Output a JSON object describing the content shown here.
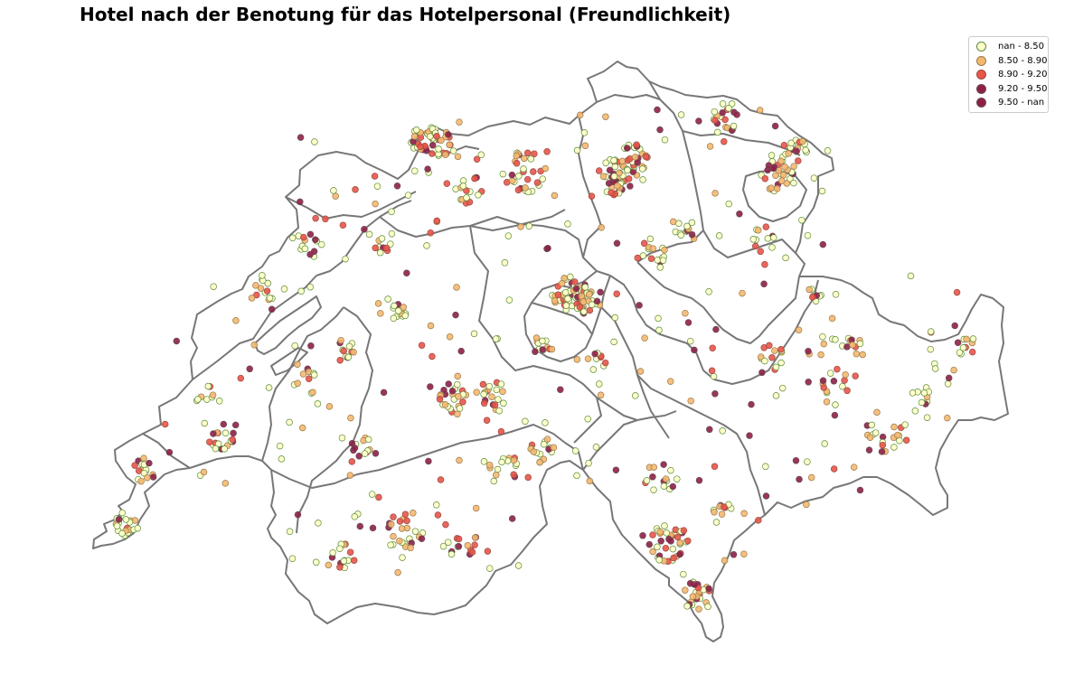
{
  "map": {
    "title": "Hotel nach der Benotung für das Hotelpersonal (Freundlichkeit)",
    "legend": [
      {
        "label": "nan - 8.50",
        "fill": "#ffffcc",
        "edge": "#5a8a3c"
      },
      {
        "label": "8.50 - 8.90",
        "fill": "#f4b870",
        "edge": "#9a7a4a"
      },
      {
        "label": "8.90 - 9.20",
        "fill": "#e8554a",
        "edge": "#9a4a40"
      },
      {
        "label": "9.20 - 9.50",
        "fill": "#8e1f48",
        "edge": "#6a4a50"
      },
      {
        "label": "9.50 - nan",
        "fill": "#8e1f48",
        "edge": "#6a4a50"
      }
    ],
    "border_color": "#777777"
  }
}
